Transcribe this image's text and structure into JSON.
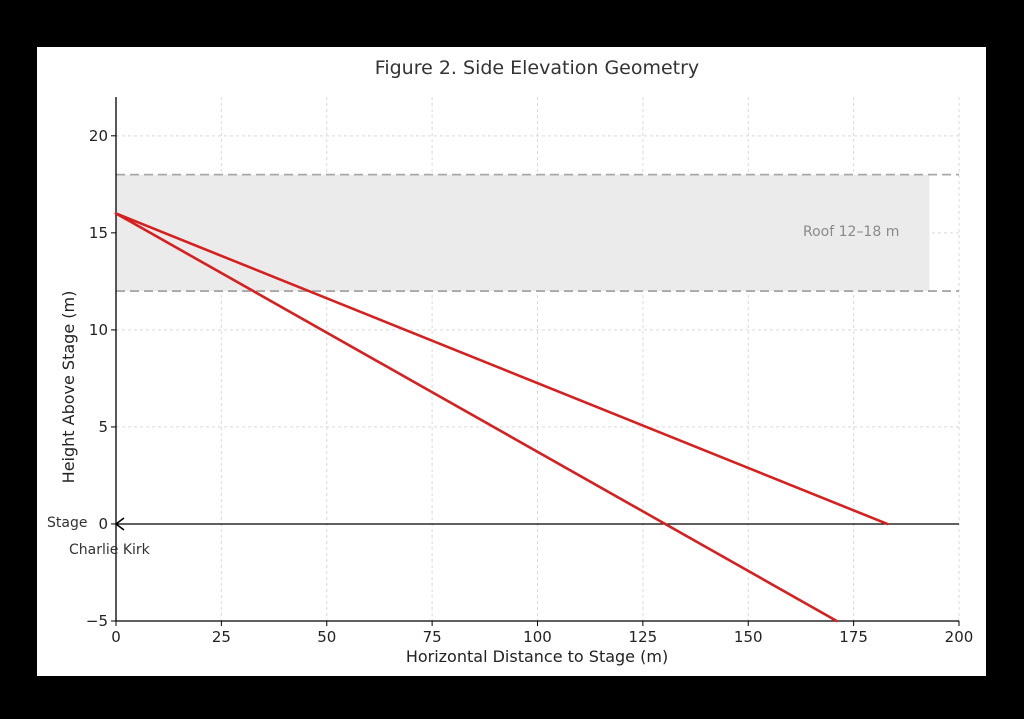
{
  "chart_data": {
    "type": "line",
    "title": "Figure 2. Side Elevation Geometry",
    "xlabel": "Horizontal Distance to Stage (m)",
    "ylabel": "Height Above Stage (m)",
    "xlim": [
      0,
      200
    ],
    "ylim": [
      -5,
      22
    ],
    "xticks": [
      0,
      25,
      50,
      75,
      100,
      125,
      150,
      175,
      200
    ],
    "yticks": [
      -5,
      0,
      5,
      10,
      15,
      20
    ],
    "x_tick_labels": [
      "0",
      "25",
      "50",
      "75",
      "100",
      "125",
      "150",
      "175",
      "200"
    ],
    "y_tick_labels": [
      "−5",
      "0",
      "5",
      "10",
      "15",
      "20"
    ],
    "grid": true,
    "series": [
      {
        "x": [
          0,
          183
        ],
        "y": [
          16,
          0
        ]
      },
      {
        "x": [
          0,
          171
        ],
        "y": [
          16,
          -5
        ]
      }
    ],
    "roof_band": {
      "x": [
        0,
        193
      ],
      "y": [
        12,
        18
      ],
      "label": "Roof 12–18 m"
    },
    "stage_line": {
      "y": 0,
      "x": [
        0,
        200
      ]
    },
    "annotations": {
      "stage": "Stage",
      "person": "Charlie Kirk"
    },
    "colors": {
      "series": "#d62020",
      "band_fill": "#ebebeb",
      "band_edge": "#a8a8a8",
      "grid": "#d9d9d9",
      "frame": "#ffffff",
      "background": "#000000"
    }
  }
}
